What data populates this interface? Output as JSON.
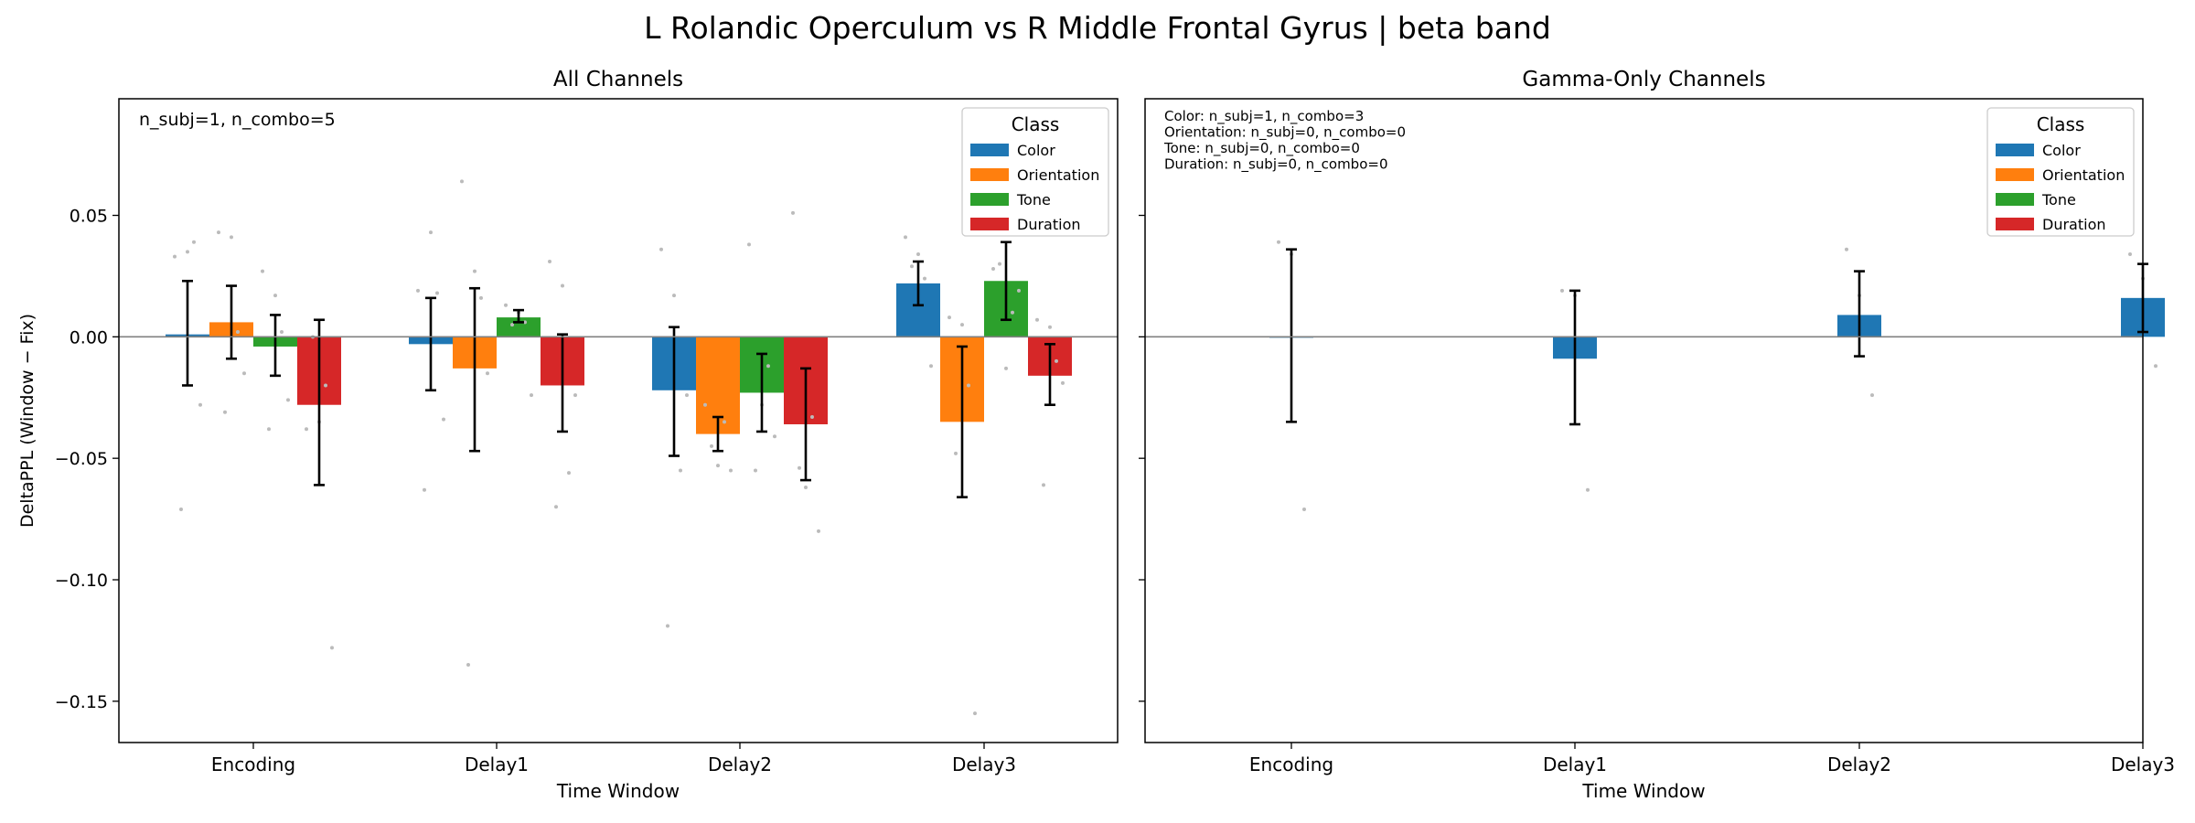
{
  "figure": {
    "suptitle": "L Rolandic Operculum vs R Middle Frontal Gyrus  |  beta band"
  },
  "colors": {
    "Color": "#1f77b4",
    "Orientation": "#ff7f0e",
    "Tone": "#2ca02c",
    "Duration": "#d62728",
    "points": "#bbbbbb",
    "zeroline": "#808080"
  },
  "chart_data": [
    {
      "type": "bar",
      "title": "All Channels",
      "xlabel": "Time Window",
      "ylabel": "DeltaPPL (Window − Fix)",
      "ylim": [
        -0.167,
        0.098
      ],
      "yticks": [
        0.05,
        0.0,
        -0.05,
        -0.1,
        -0.15
      ],
      "ytick_labels": [
        "0.05",
        "0.00",
        "−0.05",
        "−0.10",
        "−0.15"
      ],
      "categories": [
        "Encoding",
        "Delay1",
        "Delay2",
        "Delay3"
      ],
      "legend_title": "Class",
      "legend_position": "top-right",
      "annotation": [
        "n_subj=1, n_combo=5"
      ],
      "series": [
        {
          "name": "Color",
          "values": [
            0.001,
            -0.003,
            -0.022,
            0.022
          ],
          "err_low": [
            -0.02,
            -0.022,
            -0.049,
            0.013
          ],
          "err_high": [
            0.023,
            0.016,
            0.004,
            0.031
          ],
          "points": [
            [
              0.033,
              0.035,
              -0.028,
              -0.071,
              0.039
            ],
            [
              0.019,
              0.043,
              -0.034,
              -0.063,
              0.018
            ],
            [
              0.036,
              0.017,
              -0.024,
              -0.119,
              -0.055
            ],
            [
              0.041,
              0.034,
              -0.012,
              0.029,
              0.024
            ]
          ]
        },
        {
          "name": "Orientation",
          "values": [
            0.006,
            -0.013,
            -0.04,
            -0.035
          ],
          "err_low": [
            -0.009,
            -0.047,
            -0.047,
            -0.066
          ],
          "err_high": [
            0.021,
            0.02,
            -0.033,
            -0.004
          ],
          "points": [
            [
              0.043,
              0.041,
              -0.015,
              -0.031,
              0.002
            ],
            [
              0.064,
              0.027,
              -0.015,
              -0.135,
              0.016
            ],
            [
              -0.028,
              -0.053,
              -0.055,
              -0.045,
              -0.035
            ],
            [
              0.008,
              0.005,
              -0.155,
              -0.048,
              -0.02
            ]
          ]
        },
        {
          "name": "Tone",
          "values": [
            -0.004,
            0.008,
            -0.023,
            0.023
          ],
          "err_low": [
            -0.016,
            0.006,
            -0.039,
            0.007
          ],
          "err_high": [
            0.009,
            0.011,
            -0.007,
            0.039
          ],
          "points": [
            [
              0.027,
              0.017,
              -0.026,
              -0.038,
              0.002
            ],
            [
              0.013,
              0.01,
              -0.024,
              0.005,
              0.006
            ],
            [
              0.038,
              -0.028,
              -0.041,
              -0.055,
              -0.012
            ],
            [
              0.028,
              -0.013,
              0.019,
              0.03,
              0.01
            ]
          ]
        },
        {
          "name": "Duration",
          "values": [
            -0.028,
            -0.02,
            -0.036,
            -0.016
          ],
          "err_low": [
            -0.061,
            -0.039,
            -0.059,
            -0.028
          ],
          "err_high": [
            0.007,
            0.001,
            -0.013,
            -0.003
          ],
          "points": [
            [
              -0.038,
              -0.035,
              -0.128,
              0.0,
              -0.02
            ],
            [
              0.031,
              0.021,
              -0.024,
              -0.07,
              -0.056
            ],
            [
              0.051,
              -0.062,
              -0.08,
              -0.054,
              -0.033
            ],
            [
              0.007,
              0.004,
              -0.019,
              -0.061,
              -0.01
            ]
          ]
        }
      ]
    },
    {
      "type": "bar",
      "title": "Gamma-Only Channels",
      "xlabel": "Time Window",
      "ylim": [
        -0.167,
        0.098
      ],
      "categories": [
        "Encoding",
        "Delay1",
        "Delay2",
        "Delay3"
      ],
      "legend_title": "Class",
      "legend_position": "top-right",
      "annotation": [
        "Color: n_subj=1, n_combo=3",
        "Orientation: n_subj=0, n_combo=0",
        "Tone: n_subj=0, n_combo=0",
        "Duration: n_subj=0, n_combo=0"
      ],
      "series": [
        {
          "name": "Color",
          "values": [
            0.0,
            -0.009,
            0.009,
            0.016
          ],
          "err_low": [
            -0.035,
            -0.036,
            -0.008,
            0.002
          ],
          "err_high": [
            0.036,
            0.019,
            0.027,
            0.03
          ],
          "points": [
            [
              0.039,
              0.034,
              -0.071
            ],
            [
              0.019,
              0.017,
              -0.063
            ],
            [
              0.036,
              0.017,
              -0.024
            ],
            [
              0.034,
              0.024,
              -0.012
            ]
          ]
        }
      ]
    }
  ]
}
